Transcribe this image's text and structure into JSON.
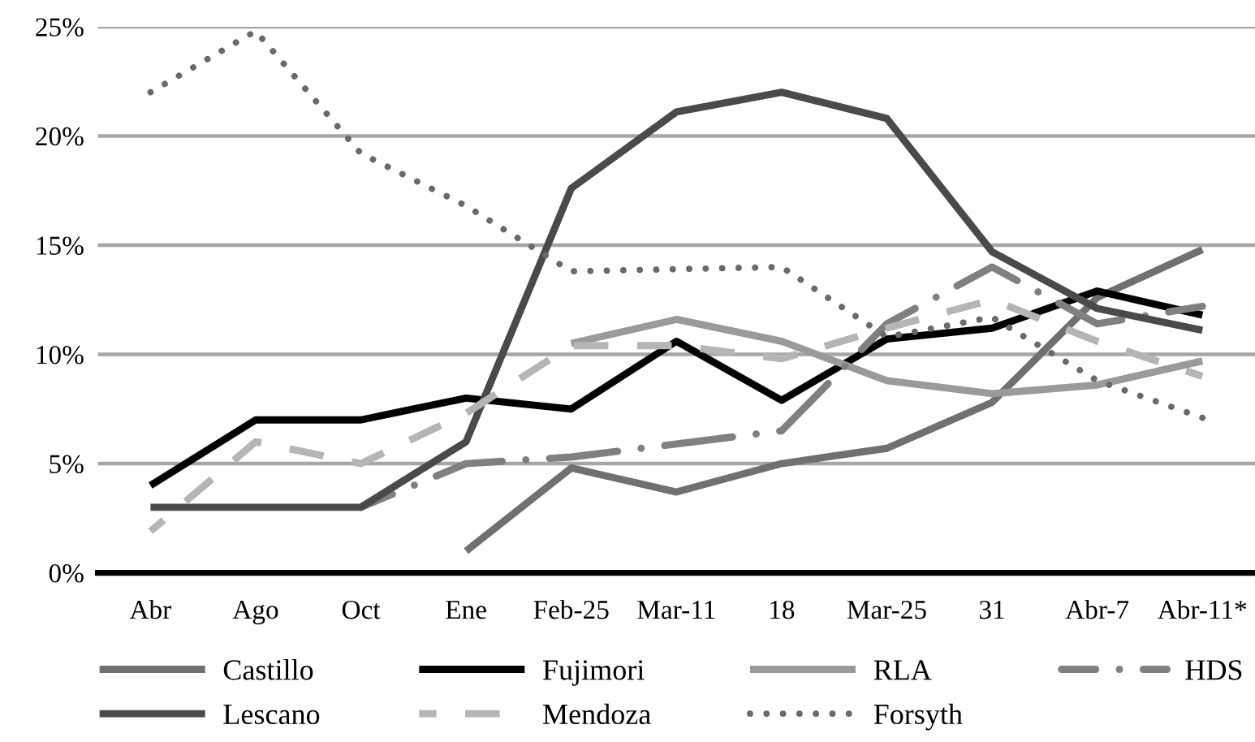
{
  "chart_data": {
    "type": "line",
    "categories": [
      "Abr",
      "Ago",
      "Oct",
      "Ene",
      "Feb-25",
      "Mar-11",
      "18",
      "Mar-25",
      "31",
      "Abr-7",
      "Abr-11*"
    ],
    "series": [
      {
        "name": "Castillo",
        "color": "#707070",
        "line_style": "solid",
        "values": [
          null,
          null,
          null,
          1.0,
          4.8,
          3.7,
          5.0,
          5.7,
          7.8,
          12.6,
          14.8
        ]
      },
      {
        "name": "Fujimori",
        "color": "#000000",
        "line_style": "solid",
        "values": [
          4.0,
          7.0,
          7.0,
          8.0,
          7.5,
          10.6,
          7.9,
          10.7,
          11.2,
          12.9,
          11.8
        ]
      },
      {
        "name": "RLA",
        "color": "#9a9a9a",
        "line_style": "solid",
        "values": [
          null,
          null,
          null,
          null,
          10.5,
          11.6,
          10.6,
          8.8,
          8.2,
          8.6,
          9.7
        ]
      },
      {
        "name": "HDS",
        "color": "#808080",
        "line_style": "dashdot",
        "values": [
          null,
          null,
          3.0,
          5.0,
          5.3,
          5.9,
          6.5,
          11.4,
          14.0,
          11.4,
          12.2
        ]
      },
      {
        "name": "Lescano",
        "color": "#4a4a4a",
        "line_style": "solid",
        "values": [
          3.0,
          3.0,
          3.0,
          6.0,
          17.6,
          21.1,
          22.0,
          20.8,
          14.7,
          12.1,
          11.1
        ]
      },
      {
        "name": "Mendoza",
        "color": "#b5b5b5",
        "line_style": "dashed",
        "values": [
          1.9,
          6.0,
          5.0,
          7.3,
          10.4,
          10.4,
          9.8,
          11.2,
          12.5,
          10.6,
          9.0
        ]
      },
      {
        "name": "Forsyth",
        "color": "#6a6a6a",
        "line_style": "dotted",
        "values": [
          22.0,
          24.8,
          19.2,
          16.8,
          13.8,
          13.9,
          14.0,
          10.8,
          11.7,
          8.8,
          7.1
        ]
      }
    ],
    "ylim": [
      0,
      25
    ],
    "yticks": [
      {
        "value": 0,
        "label": "0%"
      },
      {
        "value": 5,
        "label": "5%"
      },
      {
        "value": 10,
        "label": "10%"
      },
      {
        "value": 15,
        "label": "15%"
      },
      {
        "value": 20,
        "label": "20%"
      },
      {
        "value": 25,
        "label": "25%"
      }
    ],
    "grid": "y",
    "legend": "bottom"
  }
}
